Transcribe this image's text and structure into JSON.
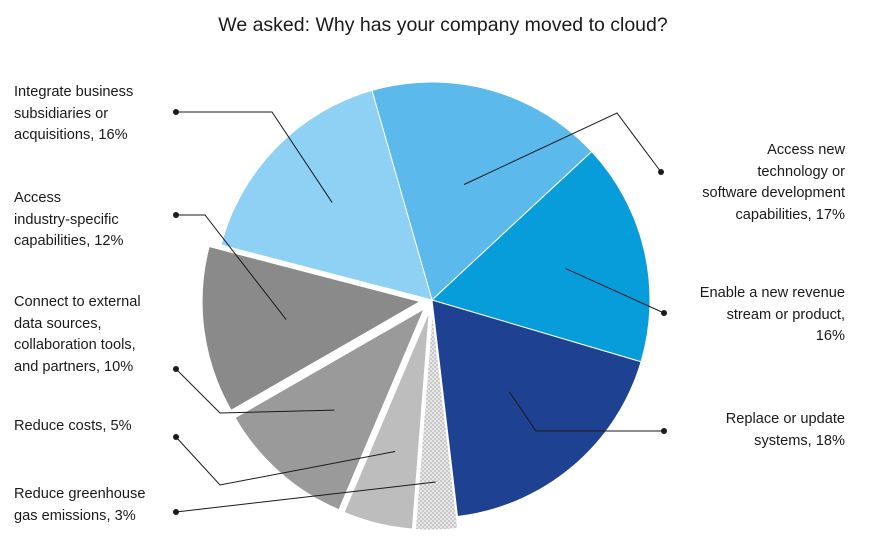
{
  "chart_data": {
    "type": "pie",
    "title": "We asked: Why has your company moved to cloud?",
    "slices": [
      {
        "label": "Access new technology or software development capabilities",
        "value": 17,
        "text": "Access new\ntechnology or\nsoftware development\ncapabilities, 17%",
        "color": "#5bbaeb"
      },
      {
        "label": "Enable a new revenue stream or product",
        "value": 16,
        "text": "Enable a new revenue\nstream or product,\n16%",
        "color": "#079cda"
      },
      {
        "label": "Replace or update systems",
        "value": 18,
        "text": "Replace or update\nsystems, 18%",
        "color": "#1e4291"
      },
      {
        "label": "Reduce greenhouse gas emissions",
        "value": 3,
        "text": "Reduce greenhouse\ngas emissions, 3%",
        "color": "#e0e0e0"
      },
      {
        "label": "Reduce costs",
        "value": 5,
        "text": "Reduce costs, 5%",
        "color": "#bdbdbd"
      },
      {
        "label": "Connect to external data sources, collaboration tools, and partners",
        "value": 10,
        "text": "Connect to external\ndata sources,\ncollaboration tools,\nand partners, 10%",
        "color": "#9a9a9a"
      },
      {
        "label": "Access industry-specific capabilities",
        "value": 12,
        "text": "Access\nindustry-specific\ncapabilities, 12%",
        "color": "#8a8a8a"
      },
      {
        "label": "Integrate business subsidiaries or acquisitions",
        "value": 16,
        "text": "Integrate business\nsubsidiaries or\nacquisitions, 16%",
        "color": "#8ed1f4"
      }
    ]
  }
}
